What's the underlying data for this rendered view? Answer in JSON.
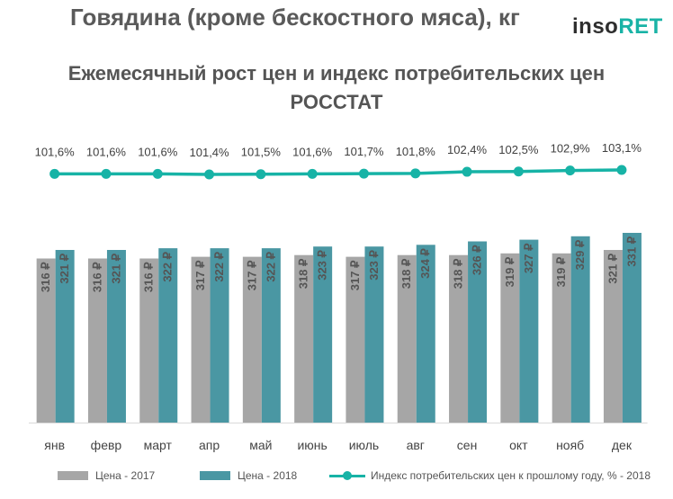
{
  "header": {
    "title": "Говядина (кроме бескостного мяса), кг",
    "logo_part1": "inso",
    "logo_part2": "RET",
    "subtitle_line1": "Ежемесячный рост цен и индекс потребительских цен",
    "subtitle_line2": "РОССТАТ"
  },
  "colors": {
    "series_2017": "#a6a6a6",
    "series_2018": "#4a97a3",
    "index_line": "#17b3a6",
    "logo_accent": "#19b3a6"
  },
  "chart_data": {
    "type": "bar",
    "categories": [
      "янв",
      "февр",
      "март",
      "апр",
      "май",
      "июнь",
      "июль",
      "авг",
      "сен",
      "окт",
      "нояб",
      "дек"
    ],
    "series": [
      {
        "name": "Цена  - 2017",
        "values": [
          316,
          316,
          316,
          317,
          317,
          318,
          317,
          318,
          318,
          319,
          319,
          321
        ],
        "value_labels": [
          "316 ₽",
          "316 ₽",
          "316 ₽",
          "317 ₽",
          "317 ₽",
          "318 ₽",
          "317 ₽",
          "318 ₽",
          "318 ₽",
          "319 ₽",
          "319 ₽",
          "321 ₽"
        ]
      },
      {
        "name": "Цена  - 2018",
        "values": [
          321,
          321,
          322,
          322,
          322,
          323,
          323,
          324,
          326,
          327,
          329,
          331
        ],
        "value_labels": [
          "321 ₽",
          "321 ₽",
          "322 ₽",
          "322 ₽",
          "322 ₽",
          "323 ₽",
          "323 ₽",
          "324 ₽",
          "326 ₽",
          "327 ₽",
          "329 ₽",
          "331 ₽"
        ]
      }
    ],
    "line_series": {
      "name": "Индекс потребительских цен к прошлому году, % - 2018",
      "values": [
        101.6,
        101.6,
        101.6,
        101.4,
        101.5,
        101.6,
        101.7,
        101.8,
        102.4,
        102.5,
        102.9,
        103.1
      ],
      "value_labels": [
        "101,6%",
        "101,6%",
        "101,6%",
        "101,4%",
        "101,5%",
        "101,6%",
        "101,7%",
        "101,8%",
        "102,4%",
        "102,5%",
        "102,9%",
        "103,1%"
      ]
    },
    "legend_position": "bottom",
    "grid": false
  }
}
